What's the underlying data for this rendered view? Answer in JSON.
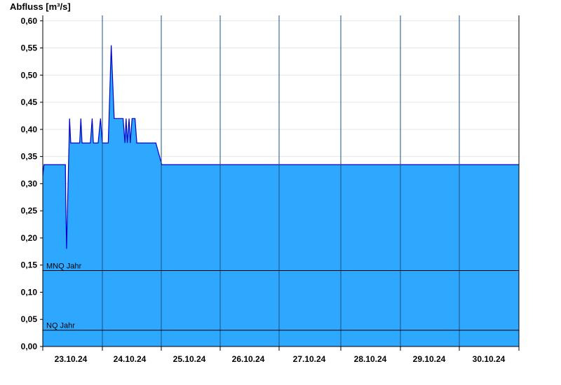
{
  "chart_data": {
    "type": "area",
    "ylabel": "Abfluss [m³/s]",
    "ylim": [
      0,
      0.61
    ],
    "y_ticks": [
      "0,00",
      "0,05",
      "0,10",
      "0,15",
      "0,20",
      "0,25",
      "0,30",
      "0,35",
      "0,40",
      "0,45",
      "0,50",
      "0,55",
      "0,60"
    ],
    "x_labels": [
      "23.10.24",
      "24.10.24",
      "25.10.24",
      "26.10.24",
      "27.10.24",
      "28.10.24",
      "29.10.24",
      "30.10.24"
    ],
    "grid": true,
    "colors": {
      "fill": "#2ea8ff",
      "line": "#0000cc",
      "reference": "#000000"
    },
    "reference_lines": [
      {
        "label": "MNQ Jahr",
        "value": 0.14
      },
      {
        "label": "NQ Jahr",
        "value": 0.03
      }
    ],
    "series": [
      {
        "x": [
          0.0,
          0.02,
          0.38,
          0.39,
          0.4,
          0.44,
          0.45,
          0.47,
          0.48,
          0.5,
          0.52,
          0.62,
          0.64,
          0.66,
          0.68,
          0.7,
          0.75,
          0.8,
          0.83,
          0.85,
          0.88,
          0.9,
          0.93,
          0.97,
          1.0,
          1.05,
          1.1,
          1.15,
          1.2,
          1.25,
          1.28,
          1.3,
          1.32,
          1.35,
          1.38,
          1.4,
          1.42,
          1.45,
          1.47,
          1.5,
          1.55,
          1.58,
          1.6,
          1.65,
          1.68,
          1.7,
          1.72,
          1.75,
          1.8,
          1.83,
          1.85,
          1.9,
          2.0,
          2.1,
          2.2,
          2.3,
          2.35,
          2.38,
          2.4,
          2.45,
          2.5,
          2.55,
          2.6,
          2.65,
          2.7,
          2.75,
          2.8,
          2.85,
          2.9,
          2.95,
          3.0,
          3.05,
          3.1,
          3.15,
          3.2,
          3.25,
          3.3,
          3.35,
          3.4,
          3.45,
          3.5,
          3.55,
          3.6,
          3.65,
          3.7,
          3.75,
          3.8,
          3.85,
          3.9,
          3.95,
          4.0,
          4.05,
          4.1,
          4.15,
          4.2,
          4.25,
          4.3,
          4.35,
          4.4,
          4.45,
          4.5,
          4.55,
          4.6,
          4.7,
          4.8,
          4.9,
          4.95,
          5.0,
          5.05,
          5.1,
          5.2,
          5.3,
          5.35,
          5.4,
          5.45,
          5.5,
          5.55,
          5.6,
          5.65,
          5.7,
          5.75,
          5.8,
          5.85,
          5.9,
          5.95,
          6.0,
          6.05,
          6.1,
          6.2,
          6.3,
          6.35,
          6.4,
          6.45,
          6.5,
          6.55,
          6.6,
          6.65,
          6.7,
          6.75,
          6.8,
          6.85,
          6.9,
          6.95,
          7.0,
          7.05,
          7.1,
          7.15,
          7.2,
          7.25,
          7.3,
          7.4,
          7.45,
          7.5,
          7.55,
          7.6,
          7.65,
          7.7,
          7.75,
          7.8,
          7.85,
          7.9,
          7.95,
          8.0
        ],
        "values": [
          0.315,
          0.335,
          0.335,
          0.24,
          0.18,
          0.37,
          0.42,
          0.375,
          0.375,
          0.375,
          0.375,
          0.375,
          0.42,
          0.375,
          0.375,
          0.375,
          0.375,
          0.375,
          0.42,
          0.375,
          0.375,
          0.375,
          0.375,
          0.42,
          0.375,
          0.375,
          0.375,
          0.555,
          0.42,
          0.42,
          0.42,
          0.42,
          0.42,
          0.42,
          0.375,
          0.42,
          0.375,
          0.42,
          0.375,
          0.42,
          0.42,
          0.375,
          0.375,
          0.375,
          0.375,
          0.375,
          0.375,
          0.375,
          0.375,
          0.375,
          0.375,
          0.375,
          0.335,
          0.335,
          0.335,
          0.335,
          0.335,
          0.335,
          0.335,
          0.335,
          0.335,
          0.335,
          0.335,
          0.335,
          0.335,
          0.335,
          0.335,
          0.335,
          0.335,
          0.335,
          0.335,
          0.335,
          0.335,
          0.335,
          0.335,
          0.335,
          0.335,
          0.335,
          0.335,
          0.335,
          0.335,
          0.335,
          0.335,
          0.335,
          0.335,
          0.335,
          0.335,
          0.335,
          0.335,
          0.335,
          0.335,
          0.335,
          0.335,
          0.335,
          0.335,
          0.335,
          0.335,
          0.335,
          0.335,
          0.335,
          0.335,
          0.335,
          0.335,
          0.335,
          0.335,
          0.335,
          0.335,
          0.335,
          0.335,
          0.335,
          0.335,
          0.335,
          0.335,
          0.335,
          0.335,
          0.335,
          0.335,
          0.335,
          0.335,
          0.335,
          0.335,
          0.335,
          0.335,
          0.335,
          0.335,
          0.335,
          0.335,
          0.335,
          0.335,
          0.335,
          0.335,
          0.335,
          0.335,
          0.335,
          0.335,
          0.335,
          0.335,
          0.335,
          0.335,
          0.335,
          0.335,
          0.335,
          0.335,
          0.335,
          0.335,
          0.335,
          0.335,
          0.335,
          0.335,
          0.335,
          0.335,
          0.335,
          0.335,
          0.335,
          0.335,
          0.335,
          0.335,
          0.335,
          0.335,
          0.335,
          0.335,
          0.335,
          0.335
        ]
      }
    ]
  }
}
